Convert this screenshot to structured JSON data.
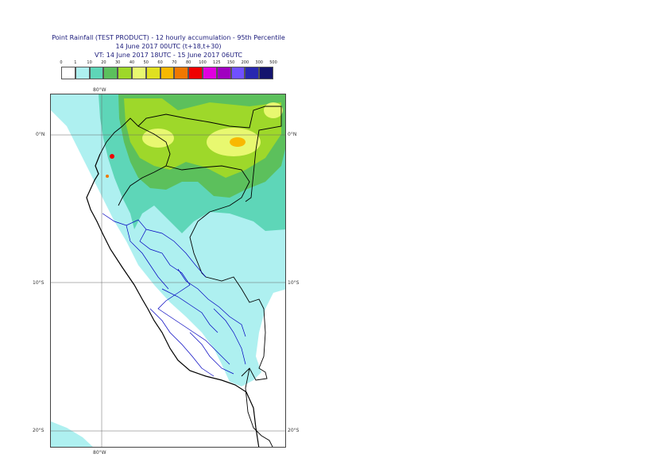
{
  "header": {
    "title_line1": "Point Rainfall (TEST PRODUCT) - 12 hourly accumulation - 95th Percentile",
    "title_line2": "14 June 2017 00UTC (t+18,t+30)",
    "title_line3": "VT: 14 June 2017 18UTC - 15 June 2017 06UTC"
  },
  "legend": {
    "ticks": [
      "0",
      "1",
      "10",
      "20",
      "30",
      "40",
      "50",
      "60",
      "70",
      "80",
      "100",
      "125",
      "150",
      "200",
      "300",
      "500"
    ],
    "colors": [
      "#ffffff",
      "#aef0f0",
      "#5ed6b8",
      "#5cc05c",
      "#9ed82a",
      "#e8f870",
      "#e0e020",
      "#f8b800",
      "#f07800",
      "#f00000",
      "#e000e0",
      "#a000c0",
      "#7050ff",
      "#2828b0",
      "#14146e"
    ]
  },
  "axes": {
    "lon_top": "80°W",
    "lon_bottom": "80°W",
    "lat_labels": [
      "0°N",
      "10°S",
      "20°S"
    ]
  }
}
